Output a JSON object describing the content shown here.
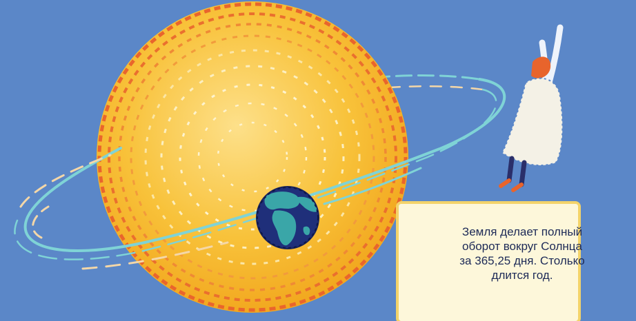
{
  "caption": {
    "line1": "Земля делает полный",
    "line2": "оборот вокруг Солнца",
    "line3": "за 365,25 дня. Столько",
    "line4": "длится год."
  },
  "colors": {
    "background": "#5b87c8",
    "sun_fill": "#f7bf2a",
    "sun_stitches": "#e9652c",
    "orbit": "#7fd3d6",
    "earth_ocean": "#1f2f7a",
    "earth_land": "#3aa6a8",
    "caption_bg": "#fdf7da",
    "caption_border": "#f3d36a"
  },
  "icons": [
    "sun",
    "earth",
    "orbit-path",
    "child-figure"
  ]
}
